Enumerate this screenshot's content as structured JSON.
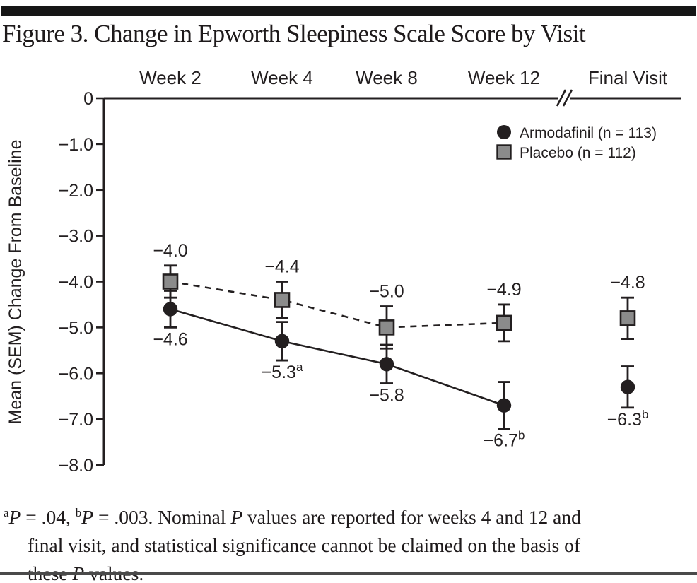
{
  "figure": {
    "title": "Figure 3. Change in Epworth Sleepiness Scale Score by Visit"
  },
  "chart_data": {
    "type": "line",
    "title": "Figure 3. Change in Epworth Sleepiness Scale Score by Visit",
    "categories": [
      "Week 2",
      "Week 4",
      "Week 8",
      "Week 12",
      "Final Visit"
    ],
    "xlabel": "",
    "ylabel": "Mean (SEM) Change From Baseline",
    "ylim": [
      -8.0,
      0
    ],
    "y_tick_labels": [
      "0",
      "−1.0",
      "−2.0",
      "−3.0",
      "−4.0",
      "−5.0",
      "−6.0",
      "−7.0",
      "−8.0"
    ],
    "grid": false,
    "legend_position": "top-right-inside",
    "axis_break": {
      "present": true,
      "between": [
        "Week 12",
        "Final Visit"
      ]
    },
    "series": [
      {
        "name": "Placebo (n = 112)",
        "marker": "filled-square",
        "marker_color": "#8b8b8b",
        "line_style": "dashed",
        "values": [
          -4.0,
          -4.4,
          -5.0,
          -4.9,
          -4.8
        ],
        "point_labels": [
          "−4.0",
          "−4.4",
          "−5.0",
          "−4.9",
          "−4.8"
        ],
        "point_label_sups": [
          "",
          "",
          "",
          "",
          ""
        ],
        "label_side": "above",
        "sem_est": [
          0.35,
          0.4,
          0.46,
          0.4,
          0.45
        ],
        "line_connects_first_n": 4
      },
      {
        "name": "Armodafinil (n = 113)",
        "marker": "filled-circle",
        "marker_color": "#231f20",
        "line_style": "solid",
        "values": [
          -4.6,
          -5.3,
          -5.8,
          -6.7,
          -6.3
        ],
        "point_labels": [
          "−4.6",
          "−5.3",
          "−5.8",
          "−6.7",
          "−6.3"
        ],
        "point_label_sups": [
          "",
          "a",
          "",
          "b",
          "b"
        ],
        "label_side": "below",
        "sem_est": [
          0.4,
          0.42,
          0.42,
          0.51,
          0.45
        ],
        "line_connects_first_n": 4
      }
    ],
    "legend_order": [
      "Armodafinil (n = 113)",
      "Placebo (n = 112)"
    ]
  },
  "footnote": {
    "segments": [
      {
        "t": "a",
        "sup": true
      },
      {
        "t": "P",
        "italic": true
      },
      {
        "t": " = .04, "
      },
      {
        "t": "b",
        "sup": true
      },
      {
        "t": "P",
        "italic": true
      },
      {
        "t": " = .003. Nominal "
      },
      {
        "t": "P",
        "italic": true
      },
      {
        "t": " values are reported for weeks 4 and 12 and"
      },
      {
        "br": true
      },
      {
        "t": "final visit, and statistical significance cannot be claimed on the basis of"
      },
      {
        "br": true
      },
      {
        "t": "these "
      },
      {
        "t": "P",
        "italic": true
      },
      {
        "t": " values."
      }
    ]
  },
  "colors": {
    "ink": "#231f20",
    "gray_fill": "#8b8b8b",
    "top_bar": "#161616",
    "bottom_rule": "#4a4a4a"
  }
}
